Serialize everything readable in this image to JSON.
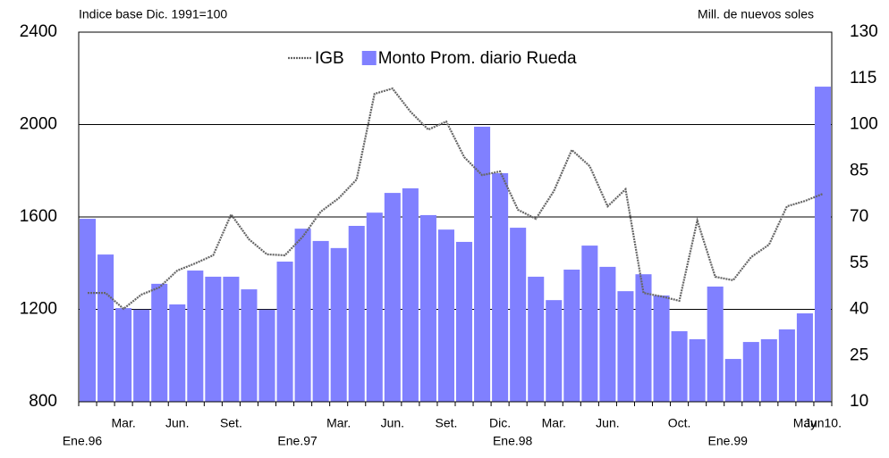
{
  "chart_data": {
    "type": "bar-line",
    "left_axis_label": "Indice base Dic. 1991=100",
    "right_axis_label": "Mill. de nuevos soles",
    "categories": [
      "Ene.96",
      null,
      "Mar.",
      null,
      null,
      "Jun.",
      null,
      null,
      "Set.",
      null,
      null,
      null,
      "Ene.97",
      null,
      "Mar.",
      null,
      null,
      "Jun.",
      null,
      null,
      "Set.",
      null,
      null,
      "Dic.",
      "Ene.98",
      null,
      "Mar.",
      null,
      null,
      "Jun.",
      null,
      null,
      null,
      "Oct.",
      null,
      null,
      "Ene.99",
      null,
      null,
      null,
      "May",
      "Jun10."
    ],
    "series": [
      {
        "name": "Monto Prom. diario Rueda",
        "type": "bar",
        "axis": "y2",
        "color": "#8080ff",
        "values": [
          69.4,
          57.8,
          40.4,
          39.9,
          48.3,
          41.6,
          52.6,
          50.6,
          50.6,
          46.5,
          39.9,
          55.5,
          66.2,
          62.2,
          59.9,
          67.1,
          71.4,
          77.8,
          79.3,
          70.6,
          65.9,
          61.9,
          99.3,
          84.2,
          66.5,
          50.6,
          43.0,
          52.9,
          60.7,
          53.8,
          45.9,
          51.4,
          44.5,
          32.9,
          30.3,
          47.4,
          23.9,
          29.4,
          30.3,
          33.5,
          38.7,
          112.3
        ]
      },
      {
        "name": "IGB",
        "type": "line",
        "color": "#666666",
        "values": [
          1271,
          1271,
          1202,
          1264,
          1295,
          1368,
          1399,
          1434,
          1611,
          1503,
          1438,
          1434,
          1515,
          1623,
          1681,
          1762,
          2133,
          2156,
          2056,
          1978,
          2013,
          1859,
          1781,
          1797,
          1631,
          1592,
          1712,
          1890,
          1820,
          1646,
          1720,
          1271,
          1256,
          1237,
          1584,
          1341,
          1326,
          1426,
          1480,
          1646,
          1669,
          1700
        ]
      }
    ],
    "ylim": [
      800,
      2400
    ],
    "yticks": [
      800,
      1200,
      1600,
      2000,
      2400
    ],
    "y2lim": [
      10,
      130
    ],
    "y2ticks": [
      10,
      25,
      40,
      55,
      70,
      85,
      100,
      115,
      130
    ],
    "grid": true
  }
}
